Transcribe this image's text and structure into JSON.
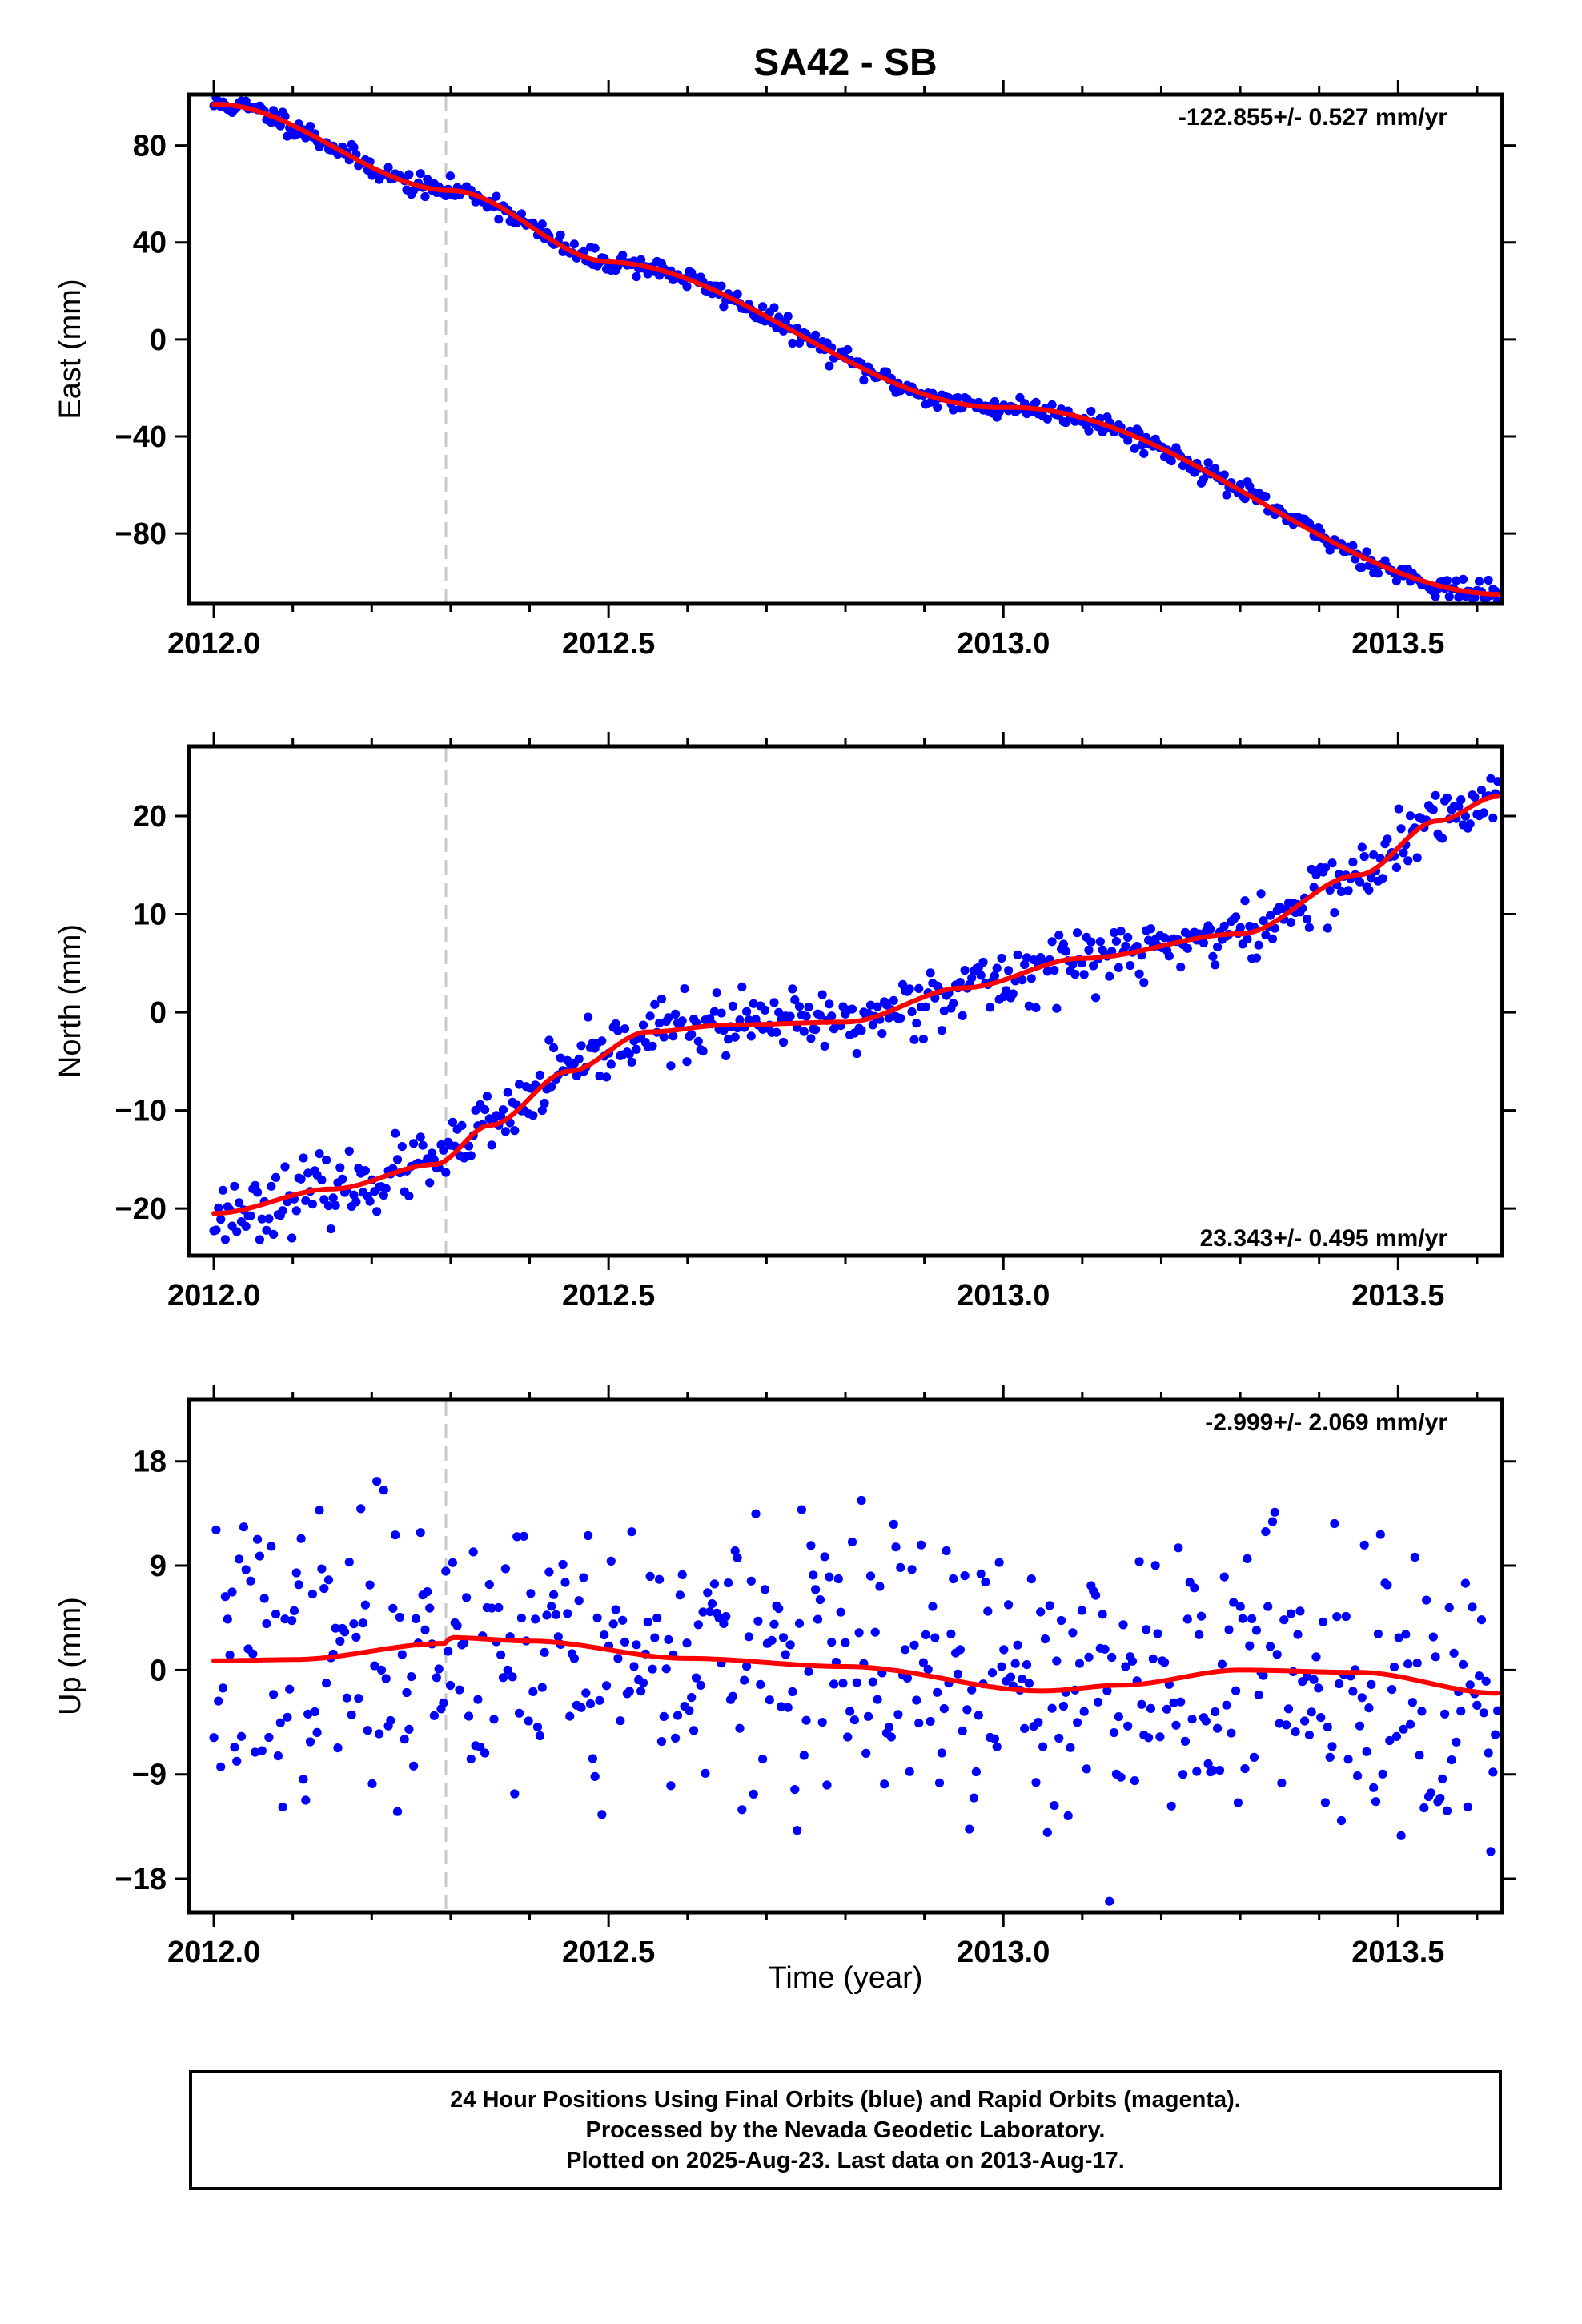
{
  "title": "SA42 - SB",
  "xlabel": "Time (year)",
  "colors": {
    "points": "#0000ff",
    "fit": "#ff0000",
    "event_line": "#c8c8c8",
    "frame": "#000000"
  },
  "footer": {
    "line1": "24 Hour Positions Using Final Orbits (blue) and Rapid Orbits (magenta).",
    "line2": "Processed by the Nevada Geodetic Laboratory.",
    "line3": "Plotted on 2025-Aug-23. Last data on 2013-Aug-17."
  },
  "chart_data": [
    {
      "type": "scatter",
      "ylabel": "East (mm)",
      "rate_label": "-122.855+/- 0.527 mm/yr",
      "rate_position": "top-right",
      "xlim": [
        1.9685,
        3.6315
      ],
      "ylim": [
        -109,
        101
      ],
      "xticks": [
        2.0,
        2.5,
        3.0,
        3.5
      ],
      "xtick_labels": [
        "2012.0",
        "2012.5",
        "2013.0",
        "2013.5"
      ],
      "yticks": [
        -80,
        -40,
        0,
        40,
        80
      ],
      "ytick_labels": [
        "−80",
        "−40",
        "0",
        "40",
        "80"
      ],
      "event_x": 2.294,
      "t_start": 2.0,
      "t_end": 3.626,
      "fit": [
        [
          2.0,
          97
        ],
        [
          2.3,
          60
        ],
        [
          2.5,
          32
        ],
        [
          3.0,
          -28
        ],
        [
          3.626,
          -104
        ]
      ],
      "fit_seasonal_amp": 1.5,
      "noise": 2.2,
      "n_points": 560,
      "seed": 11
    },
    {
      "type": "scatter",
      "ylabel": "North (mm)",
      "rate_label": "23.343+/- 0.495 mm/yr",
      "rate_position": "bottom-right",
      "xlim": [
        1.9685,
        3.6315
      ],
      "ylim": [
        -24.8,
        27.1
      ],
      "xticks": [
        2.0,
        2.5,
        3.0,
        3.5
      ],
      "xtick_labels": [
        "2012.0",
        "2012.5",
        "2013.0",
        "2013.5"
      ],
      "yticks": [
        -20,
        -10,
        0,
        10,
        20
      ],
      "ytick_labels": [
        "−20",
        "−10",
        "0",
        "10",
        "20"
      ],
      "event_x": 2.294,
      "t_start": 2.0,
      "t_end": 3.626,
      "fit": [
        [
          2.0,
          -20.5
        ],
        [
          2.15,
          -18
        ],
        [
          2.28,
          -15.5
        ],
        [
          2.35,
          -11.5
        ],
        [
          2.45,
          -6
        ],
        [
          2.55,
          -2
        ],
        [
          2.65,
          -1.3
        ],
        [
          2.8,
          -1
        ],
        [
          2.95,
          2.5
        ],
        [
          3.1,
          5.5
        ],
        [
          3.3,
          8
        ],
        [
          3.45,
          14
        ],
        [
          3.55,
          19.5
        ],
        [
          3.626,
          22
        ]
      ],
      "fit_seasonal_amp": 0,
      "noise": 1.6,
      "n_points": 560,
      "seed": 23
    },
    {
      "type": "scatter",
      "ylabel": "Up (mm)",
      "rate_label": "-2.999+/- 2.069 mm/yr",
      "rate_position": "top-right",
      "xlim": [
        1.9685,
        3.6315
      ],
      "ylim": [
        -20.9,
        23.3
      ],
      "xticks": [
        2.0,
        2.5,
        3.0,
        3.5
      ],
      "xtick_labels": [
        "2012.0",
        "2012.5",
        "2013.0",
        "2013.5"
      ],
      "yticks": [
        -18,
        -9,
        0,
        9,
        18
      ],
      "ytick_labels": [
        "−18",
        "−9",
        "0",
        "9",
        "18"
      ],
      "event_x": 2.294,
      "t_start": 2.0,
      "t_end": 3.626,
      "fit": [
        [
          2.0,
          0.8
        ],
        [
          2.1,
          0.9
        ],
        [
          2.294,
          2.3
        ],
        [
          2.3,
          2.8
        ],
        [
          2.4,
          2.5
        ],
        [
          2.6,
          1.0
        ],
        [
          2.8,
          0.3
        ],
        [
          3.05,
          -1.8
        ],
        [
          3.15,
          -1.3
        ],
        [
          3.3,
          0
        ],
        [
          3.45,
          -0.2
        ],
        [
          3.626,
          -2.0
        ]
      ],
      "fit_seasonal_amp": 0,
      "noise": 6.0,
      "n_points": 560,
      "seed": 37
    }
  ]
}
